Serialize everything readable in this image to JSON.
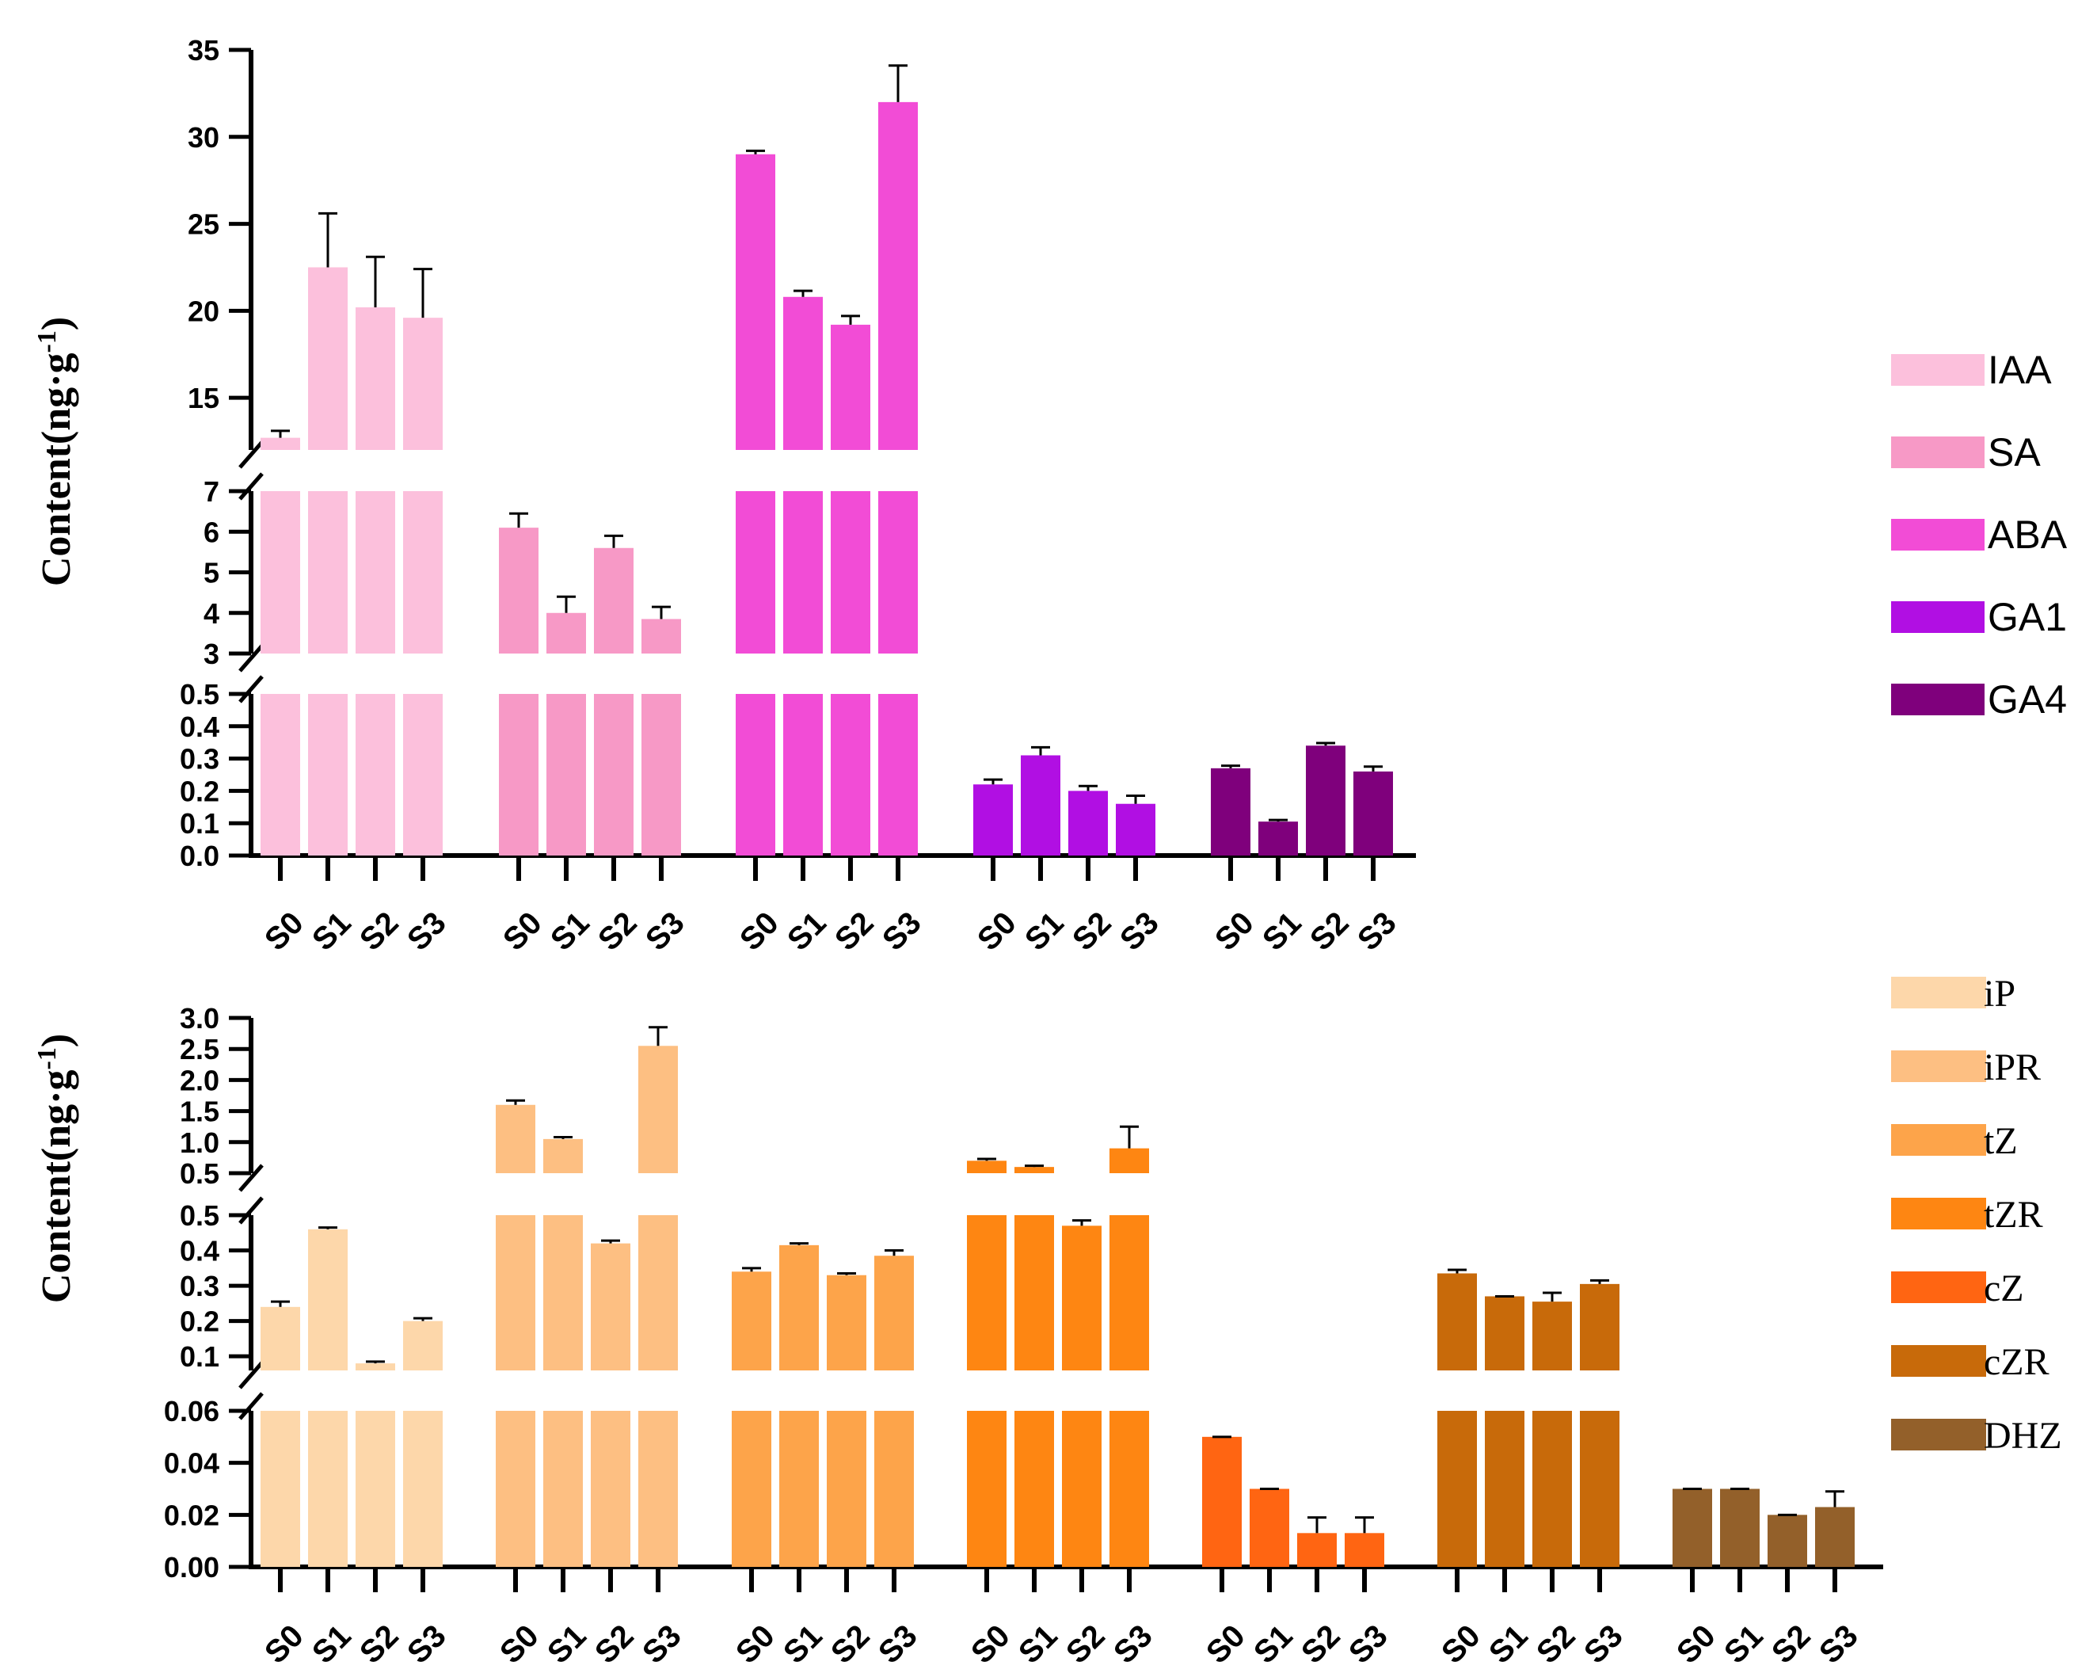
{
  "chart_data": [
    {
      "type": "bar",
      "id": "top",
      "ylabel": "Content(ng·g",
      "ylabel_sup": "-1",
      "ylabel_close": ")",
      "categories": [
        "S0",
        "S1",
        "S2",
        "S3"
      ],
      "segments": [
        {
          "range": [
            12,
            35
          ],
          "ticks": [
            15,
            20,
            25,
            30,
            35
          ],
          "tick_labels": [
            "15",
            "20",
            "25",
            "30",
            "35"
          ]
        },
        {
          "range": [
            3,
            7
          ],
          "ticks": [
            3,
            4,
            5,
            6,
            7
          ],
          "tick_labels": [
            "3",
            "4",
            "5",
            "6",
            "7"
          ]
        },
        {
          "range": [
            0,
            0.5
          ],
          "ticks": [
            0,
            0.1,
            0.2,
            0.3,
            0.4,
            0.5
          ],
          "tick_labels": [
            "0.0",
            "0.1",
            "0.2",
            "0.3",
            "0.4",
            "0.5"
          ]
        }
      ],
      "series": [
        {
          "name": "IAA",
          "color": "#FCC0DC",
          "values": [
            12.7,
            22.5,
            20.2,
            19.6
          ],
          "errors": [
            0.4,
            3.1,
            2.9,
            2.8
          ]
        },
        {
          "name": "SA",
          "color": "#F799C6",
          "values": [
            6.1,
            4.0,
            5.6,
            3.85
          ],
          "errors": [
            0.35,
            0.4,
            0.3,
            0.3
          ]
        },
        {
          "name": "ABA",
          "color": "#F24CD6",
          "values": [
            29.0,
            20.8,
            19.2,
            32.0
          ],
          "errors": [
            0.2,
            0.35,
            0.5,
            2.1
          ]
        },
        {
          "name": "GA1",
          "color": "#B10FE3",
          "values": [
            0.22,
            0.31,
            0.2,
            0.16
          ],
          "errors": [
            0.015,
            0.025,
            0.015,
            0.025
          ]
        },
        {
          "name": "GA4",
          "color": "#7F007C",
          "values": [
            0.27,
            0.105,
            0.34,
            0.26
          ],
          "errors": [
            0.008,
            0.005,
            0.008,
            0.015
          ]
        }
      ]
    },
    {
      "type": "bar",
      "id": "bottom",
      "ylabel": "Content(ng·g",
      "ylabel_sup": "-1",
      "ylabel_close": ")",
      "categories": [
        "S0",
        "S1",
        "S2",
        "S3"
      ],
      "segments": [
        {
          "range": [
            0.5,
            3.0
          ],
          "ticks": [
            0.5,
            1.0,
            1.5,
            2.0,
            2.5,
            3.0
          ],
          "tick_labels": [
            "0.5",
            "1.0",
            "1.5",
            "2.0",
            "2.5",
            "3.0"
          ]
        },
        {
          "range": [
            0.06,
            0.5
          ],
          "ticks": [
            0.1,
            0.2,
            0.3,
            0.4,
            0.5
          ],
          "tick_labels": [
            "0.1",
            "0.2",
            "0.3",
            "0.4",
            "0.5"
          ]
        },
        {
          "range": [
            0,
            0.06
          ],
          "ticks": [
            0,
            0.02,
            0.04,
            0.06
          ],
          "tick_labels": [
            "0.00",
            "0.02",
            "0.04",
            "0.06"
          ]
        }
      ],
      "series": [
        {
          "name": "iP",
          "color": "#FDD7AA",
          "values": [
            0.24,
            0.46,
            0.08,
            0.2
          ],
          "errors": [
            0.015,
            0.005,
            0.005,
            0.008
          ]
        },
        {
          "name": "iPR",
          "color": "#FDBF82",
          "values": [
            1.6,
            1.05,
            0.42,
            2.55
          ],
          "errors": [
            0.07,
            0.03,
            0.008,
            0.3
          ]
        },
        {
          "name": "tZ",
          "color": "#FDA44A",
          "values": [
            0.34,
            0.415,
            0.33,
            0.385
          ],
          "errors": [
            0.01,
            0.005,
            0.005,
            0.015
          ]
        },
        {
          "name": "tZR",
          "color": "#FE8612",
          "values": [
            0.7,
            0.6,
            0.47,
            0.9
          ],
          "errors": [
            0.03,
            0.02,
            0.015,
            0.35
          ]
        },
        {
          "name": "cZ",
          "color": "#FF6512",
          "values": [
            0.05,
            0.03,
            0.013,
            0.013
          ],
          "errors": [
            0,
            0,
            0.006,
            0.006
          ]
        },
        {
          "name": "cZR",
          "color": "#C86A0A",
          "values": [
            0.335,
            0.27,
            0.255,
            0.305
          ],
          "errors": [
            0.01,
            0,
            0.025,
            0.01
          ]
        },
        {
          "name": "DHZ",
          "color": "#93602A",
          "values": [
            0.03,
            0.03,
            0.02,
            0.023
          ],
          "errors": [
            0,
            0,
            0,
            0.006
          ]
        }
      ]
    }
  ]
}
